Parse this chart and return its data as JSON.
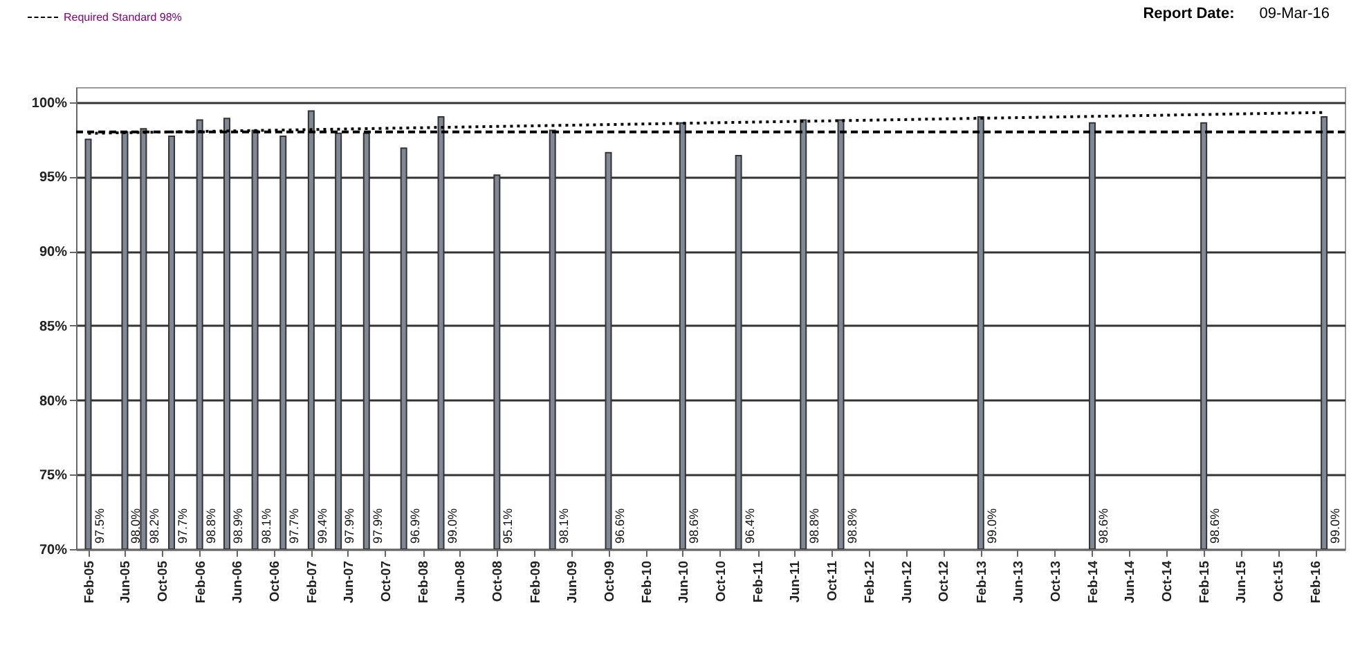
{
  "chart_data": {
    "type": "bar",
    "annotations": [
      "Report Date:",
      "09-Mar-16"
    ],
    "x": [
      "2005-02",
      "2005-06",
      "2005-08",
      "2005-11",
      "2006-02",
      "2006-05",
      "2006-08",
      "2006-11",
      "2007-02",
      "2007-05",
      "2007-08",
      "2007-12",
      "2008-04",
      "2008-10",
      "2009-04",
      "2009-10",
      "2010-06",
      "2010-12",
      "2011-07",
      "2011-11",
      "2013-02",
      "2014-02",
      "2015-02",
      "2016-03"
    ],
    "series": [
      {
        "color": "#7f8894",
        "values": [
          97.5,
          98.0,
          98.2,
          97.7,
          98.8,
          98.9,
          98.1,
          97.7,
          99.4,
          97.9,
          97.9,
          96.9,
          99.0,
          95.1,
          98.1,
          96.6,
          98.6,
          96.4,
          98.8,
          98.8,
          99.0,
          98.6,
          98.6,
          99.0
        ],
        "value_labels": [
          "97.5%",
          "98.0%",
          "98.2%",
          "97.7%",
          "98.8%",
          "98.9%",
          "98.1%",
          "97.7%",
          "99.4%",
          "97.9%",
          "97.9%",
          "96.9%",
          "99.0%",
          "95.1%",
          "98.1%",
          "96.6%",
          "98.6%",
          "96.4%",
          "98.8%",
          "98.8%",
          "99.0%",
          "98.6%",
          "98.6%",
          "99.0%"
        ]
      },
      {
        "type": "line",
        "x": [
          "2005-02",
          "2016-03"
        ],
        "values": [
          97.9,
          99.3
        ],
        "color": "#000000",
        "line_style": "dotted"
      }
    ],
    "xlim": [
      "2005-01-15",
      "2016-04-15"
    ],
    "xticks": [
      {
        "value": "2005-02",
        "label": "Feb-05"
      },
      {
        "value": "2005-06",
        "label": "Jun-05"
      },
      {
        "value": "2005-10",
        "label": "Oct-05"
      },
      {
        "value": "2006-02",
        "label": "Feb-06"
      },
      {
        "value": "2006-06",
        "label": "Jun-06"
      },
      {
        "value": "2006-10",
        "label": "Oct-06"
      },
      {
        "value": "2007-02",
        "label": "Feb-07"
      },
      {
        "value": "2007-06",
        "label": "Jun-07"
      },
      {
        "value": "2007-10",
        "label": "Oct-07"
      },
      {
        "value": "2008-02",
        "label": "Feb-08"
      },
      {
        "value": "2008-06",
        "label": "Jun-08"
      },
      {
        "value": "2008-10",
        "label": "Oct-08"
      },
      {
        "value": "2009-02",
        "label": "Feb-09"
      },
      {
        "value": "2009-06",
        "label": "Jun-09"
      },
      {
        "value": "2009-10",
        "label": "Oct-09"
      },
      {
        "value": "2010-02",
        "label": "Feb-10"
      },
      {
        "value": "2010-06",
        "label": "Jun-10"
      },
      {
        "value": "2010-10",
        "label": "Oct-10"
      },
      {
        "value": "2011-02",
        "label": "Feb-11"
      },
      {
        "value": "2011-06",
        "label": "Jun-11"
      },
      {
        "value": "2011-10",
        "label": "Oct-11"
      },
      {
        "value": "2012-02",
        "label": "Feb-12"
      },
      {
        "value": "2012-06",
        "label": "Jun-12"
      },
      {
        "value": "2012-10",
        "label": "Oct-12"
      },
      {
        "value": "2013-02",
        "label": "Feb-13"
      },
      {
        "value": "2013-06",
        "label": "Jun-13"
      },
      {
        "value": "2013-10",
        "label": "Oct-13"
      },
      {
        "value": "2014-02",
        "label": "Feb-14"
      },
      {
        "value": "2014-06",
        "label": "Jun-14"
      },
      {
        "value": "2014-10",
        "label": "Oct-14"
      },
      {
        "value": "2015-02",
        "label": "Feb-15"
      },
      {
        "value": "2015-06",
        "label": "Jun-15"
      },
      {
        "value": "2015-10",
        "label": "Oct-15"
      },
      {
        "value": "2016-02",
        "label": "Feb-16"
      }
    ],
    "ylim": [
      70,
      101
    ],
    "yticks": [
      {
        "value": 70,
        "label": "70%"
      },
      {
        "value": 75,
        "label": "75%"
      },
      {
        "value": 80,
        "label": "80%"
      },
      {
        "value": 85,
        "label": "85%"
      },
      {
        "value": 90,
        "label": "90%"
      },
      {
        "value": 95,
        "label": "95%"
      },
      {
        "value": 100,
        "label": "100%"
      }
    ],
    "grid": "y",
    "ref_lines": [
      {
        "axis": "y",
        "value": 98,
        "label": "Required Standard 98%",
        "color": "#000000",
        "line_style": "dashed"
      }
    ],
    "legend": "top left"
  }
}
